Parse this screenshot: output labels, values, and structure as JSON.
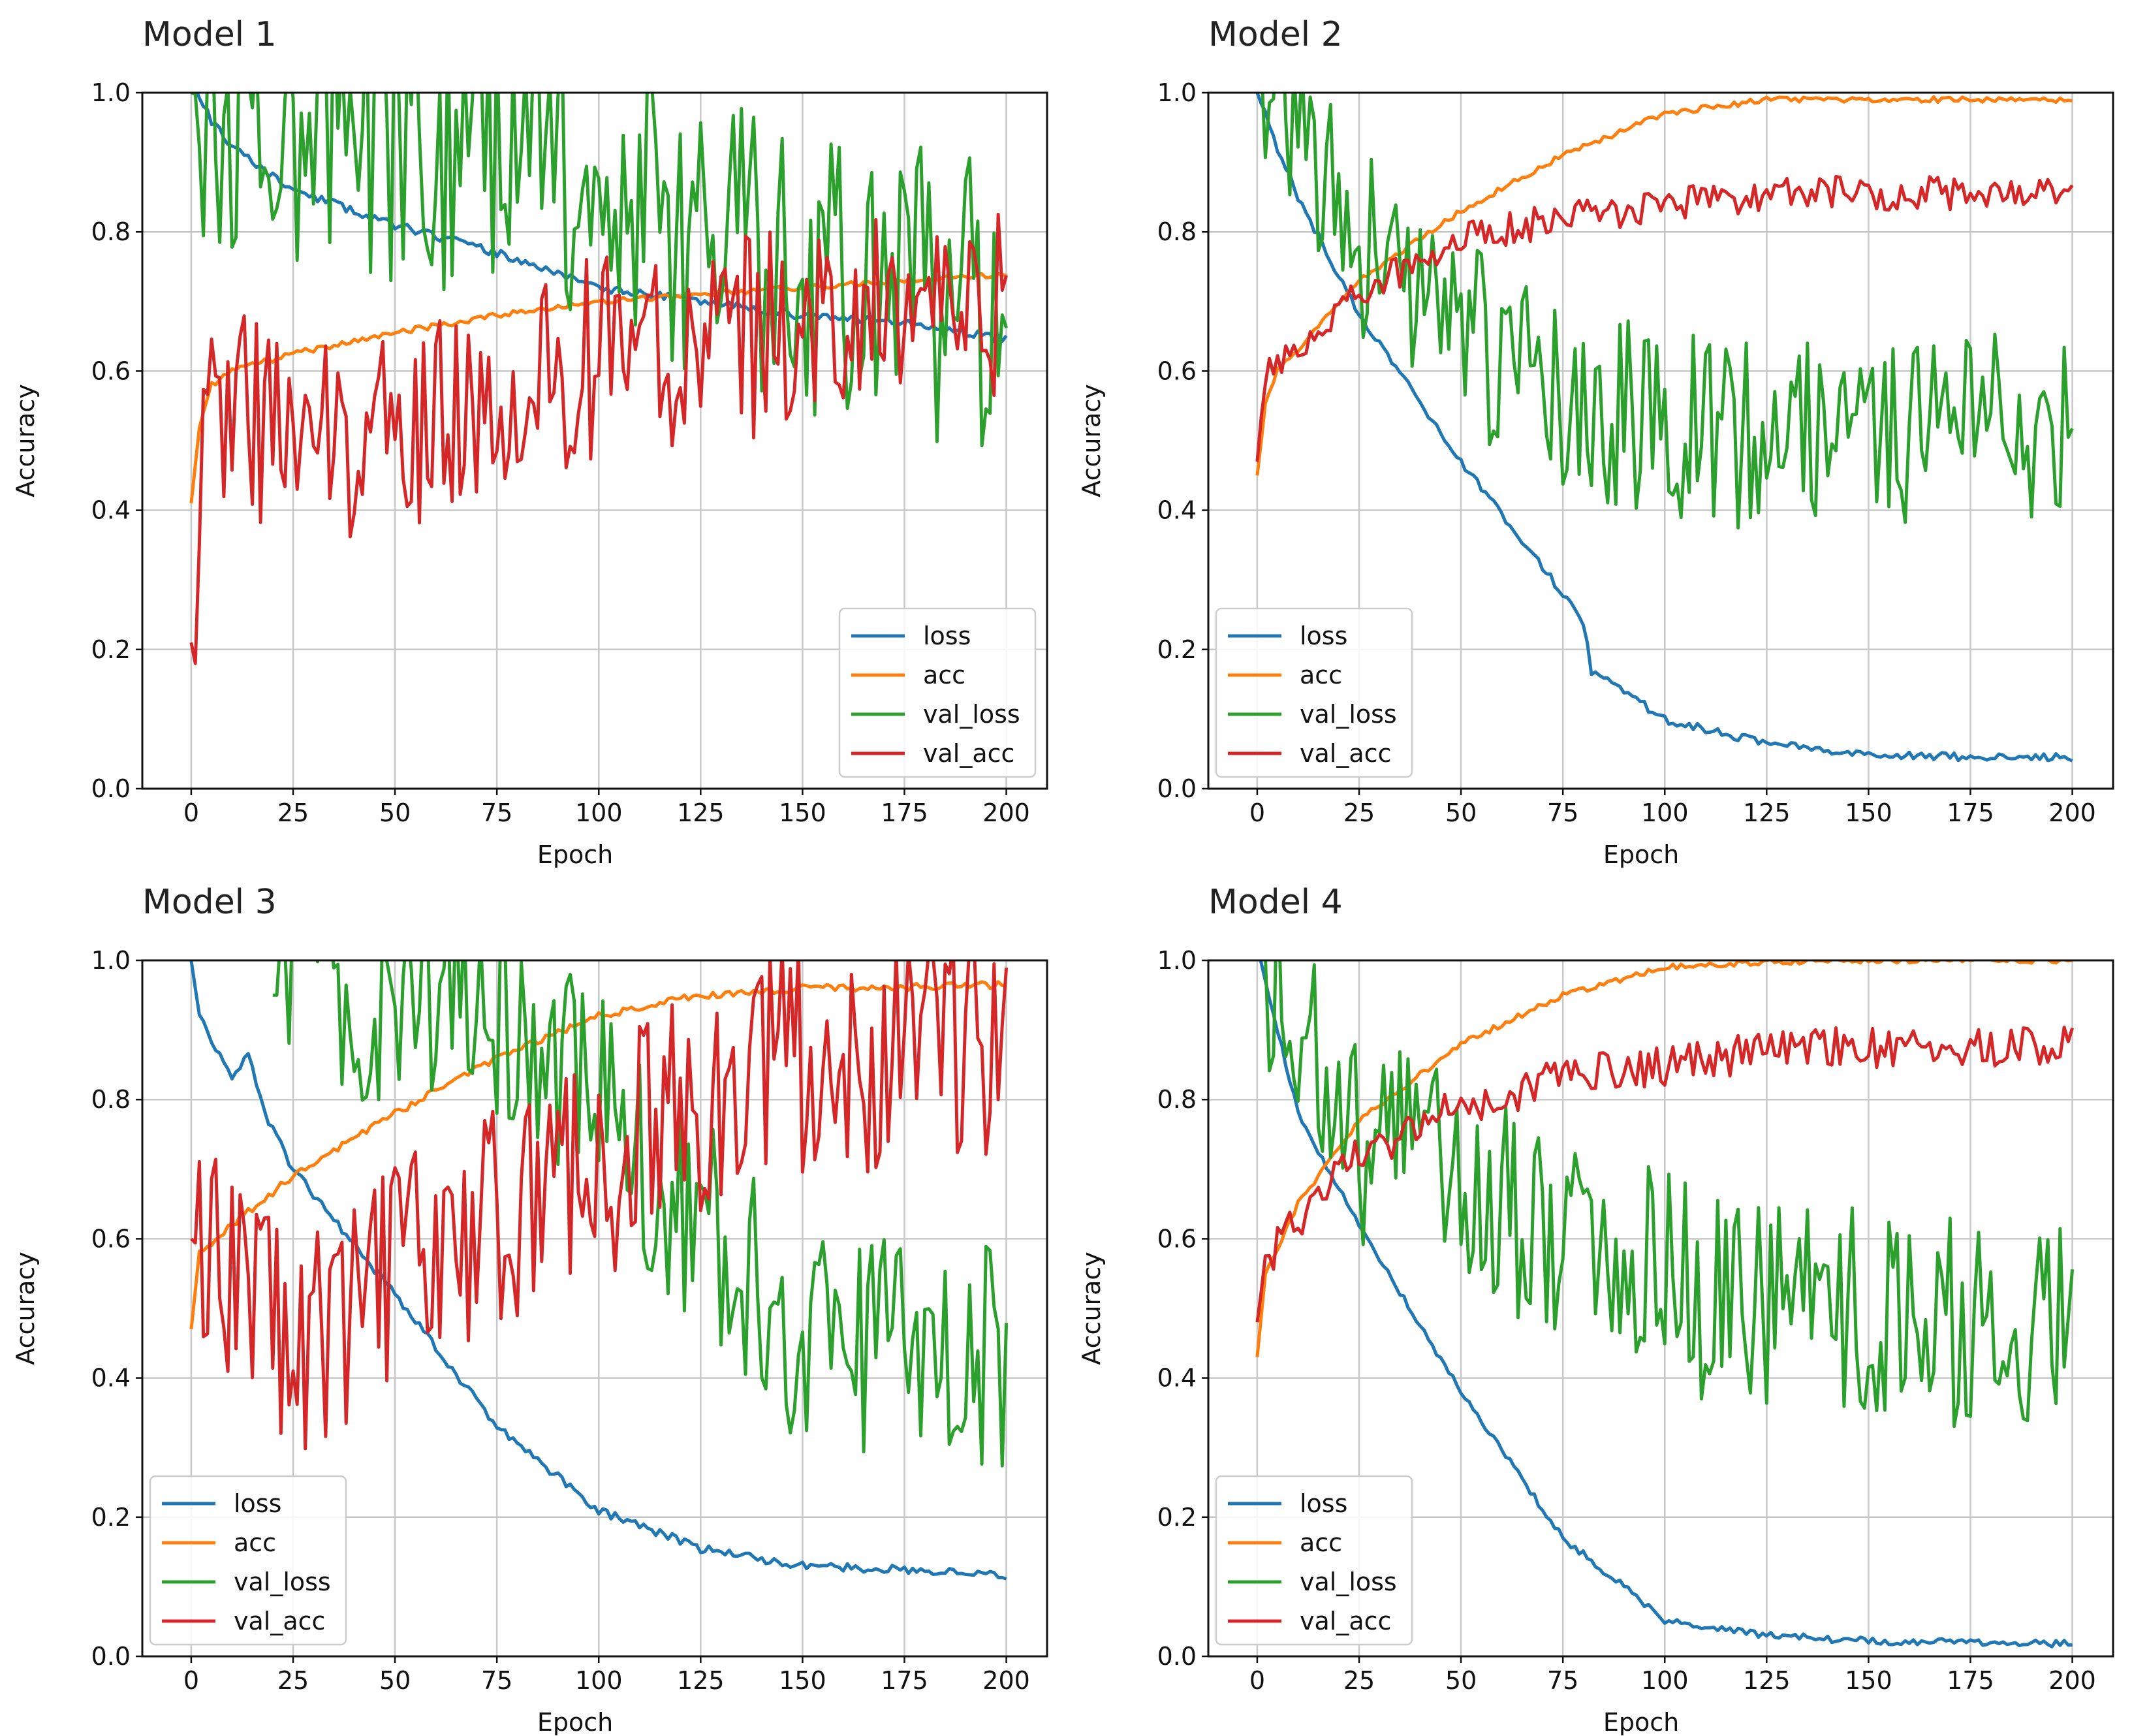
{
  "chart_data": [
    {
      "type": "line",
      "title": "Model 1",
      "xlabel": "Epoch",
      "ylabel": "Accuracy",
      "xlim": [
        -12,
        210
      ],
      "ylim": [
        0.0,
        1.0
      ],
      "xticks": [
        0,
        25,
        50,
        75,
        100,
        125,
        150,
        175,
        200
      ],
      "yticks": [
        0.0,
        0.2,
        0.4,
        0.6,
        0.8,
        1.0
      ],
      "grid": true,
      "legend_position": "lower-right",
      "series": [
        {
          "name": "loss",
          "color": "#1f77b4",
          "noise": 0.006,
          "seed": 11,
          "points": [
            [
              0,
              1.02
            ],
            [
              5,
              0.96
            ],
            [
              10,
              0.92
            ],
            [
              25,
              0.86
            ],
            [
              50,
              0.81
            ],
            [
              75,
              0.77
            ],
            [
              100,
              0.72
            ],
            [
              125,
              0.7
            ],
            [
              150,
              0.68
            ],
            [
              175,
              0.67
            ],
            [
              200,
              0.645
            ]
          ]
        },
        {
          "name": "acc",
          "color": "#ff7f0e",
          "noise": 0.004,
          "seed": 12,
          "points": [
            [
              0,
              0.41
            ],
            [
              2,
              0.52
            ],
            [
              5,
              0.58
            ],
            [
              10,
              0.6
            ],
            [
              25,
              0.625
            ],
            [
              50,
              0.655
            ],
            [
              75,
              0.68
            ],
            [
              100,
              0.7
            ],
            [
              125,
              0.71
            ],
            [
              150,
              0.72
            ],
            [
              175,
              0.73
            ],
            [
              200,
              0.74
            ]
          ]
        },
        {
          "name": "val_loss",
          "color": "#2ca02c",
          "noise": 0.22,
          "seed": 13,
          "points": [
            [
              0,
              1.0
            ],
            [
              25,
              0.95
            ],
            [
              50,
              0.95
            ],
            [
              75,
              0.92
            ],
            [
              100,
              0.88
            ],
            [
              125,
              0.8
            ],
            [
              150,
              0.76
            ],
            [
              175,
              0.72
            ],
            [
              200,
              0.7
            ]
          ]
        },
        {
          "name": "val_acc",
          "color": "#d62728",
          "noise": 0.15,
          "seed": 14,
          "points": [
            [
              0,
              0.21
            ],
            [
              1,
              0.18
            ],
            [
              3,
              0.58
            ],
            [
              25,
              0.5
            ],
            [
              50,
              0.52
            ],
            [
              75,
              0.55
            ],
            [
              100,
              0.62
            ],
            [
              125,
              0.64
            ],
            [
              150,
              0.66
            ],
            [
              175,
              0.68
            ],
            [
              200,
              0.7
            ]
          ]
        }
      ]
    },
    {
      "type": "line",
      "title": "Model 2",
      "xlabel": "Epoch",
      "ylabel": "Accuracy",
      "xlim": [
        -12,
        210
      ],
      "ylim": [
        0.0,
        1.0
      ],
      "xticks": [
        0,
        25,
        50,
        75,
        100,
        125,
        150,
        175,
        200
      ],
      "yticks": [
        0.0,
        0.2,
        0.4,
        0.6,
        0.8,
        1.0
      ],
      "grid": true,
      "legend_position": "lower-left",
      "series": [
        {
          "name": "loss",
          "color": "#1f77b4",
          "noise": 0.006,
          "seed": 21,
          "points": [
            [
              0,
              1.0
            ],
            [
              5,
              0.92
            ],
            [
              10,
              0.85
            ],
            [
              25,
              0.68
            ],
            [
              50,
              0.47
            ],
            [
              75,
              0.28
            ],
            [
              80,
              0.24
            ],
            [
              82,
              0.17
            ],
            [
              100,
              0.1
            ],
            [
              125,
              0.065
            ],
            [
              150,
              0.05
            ],
            [
              175,
              0.045
            ],
            [
              200,
              0.045
            ]
          ]
        },
        {
          "name": "acc",
          "color": "#ff7f0e",
          "noise": 0.004,
          "seed": 22,
          "points": [
            [
              0,
              0.45
            ],
            [
              2,
              0.55
            ],
            [
              5,
              0.6
            ],
            [
              10,
              0.63
            ],
            [
              25,
              0.73
            ],
            [
              50,
              0.83
            ],
            [
              75,
              0.91
            ],
            [
              100,
              0.97
            ],
            [
              125,
              0.99
            ],
            [
              150,
              0.99
            ],
            [
              175,
              0.99
            ],
            [
              200,
              0.99
            ]
          ]
        },
        {
          "name": "val_loss",
          "color": "#2ca02c",
          "noise": 0.14,
          "seed": 23,
          "points": [
            [
              0,
              1.05
            ],
            [
              10,
              0.95
            ],
            [
              25,
              0.78
            ],
            [
              50,
              0.65
            ],
            [
              75,
              0.57
            ],
            [
              100,
              0.52
            ],
            [
              125,
              0.51
            ],
            [
              150,
              0.52
            ],
            [
              175,
              0.52
            ],
            [
              200,
              0.51
            ]
          ]
        },
        {
          "name": "val_acc",
          "color": "#d62728",
          "noise": 0.025,
          "seed": 24,
          "points": [
            [
              0,
              0.47
            ],
            [
              2,
              0.6
            ],
            [
              10,
              0.62
            ],
            [
              25,
              0.71
            ],
            [
              50,
              0.79
            ],
            [
              75,
              0.82
            ],
            [
              100,
              0.84
            ],
            [
              125,
              0.855
            ],
            [
              150,
              0.855
            ],
            [
              175,
              0.855
            ],
            [
              200,
              0.855
            ]
          ]
        }
      ]
    },
    {
      "type": "line",
      "title": "Model 3",
      "xlabel": "Epoch",
      "ylabel": "Accuracy",
      "xlim": [
        -12,
        210
      ],
      "ylim": [
        0.0,
        1.0
      ],
      "xticks": [
        0,
        25,
        50,
        75,
        100,
        125,
        150,
        175,
        200
      ],
      "yticks": [
        0.0,
        0.2,
        0.4,
        0.6,
        0.8,
        1.0
      ],
      "grid": true,
      "legend_position": "lower-left",
      "series": [
        {
          "name": "loss",
          "color": "#1f77b4",
          "noise": 0.006,
          "seed": 31,
          "points": [
            [
              0,
              1.0
            ],
            [
              2,
              0.92
            ],
            [
              10,
              0.83
            ],
            [
              14,
              0.87
            ],
            [
              18,
              0.78
            ],
            [
              25,
              0.7
            ],
            [
              50,
              0.52
            ],
            [
              75,
              0.33
            ],
            [
              100,
              0.21
            ],
            [
              125,
              0.155
            ],
            [
              150,
              0.13
            ],
            [
              175,
              0.125
            ],
            [
              200,
              0.115
            ]
          ]
        },
        {
          "name": "acc",
          "color": "#ff7f0e",
          "noise": 0.005,
          "seed": 32,
          "points": [
            [
              0,
              0.47
            ],
            [
              2,
              0.58
            ],
            [
              10,
              0.62
            ],
            [
              25,
              0.69
            ],
            [
              50,
              0.78
            ],
            [
              75,
              0.86
            ],
            [
              100,
              0.92
            ],
            [
              125,
              0.95
            ],
            [
              150,
              0.96
            ],
            [
              175,
              0.962
            ],
            [
              200,
              0.965
            ]
          ]
        },
        {
          "name": "val_loss",
          "color": "#2ca02c",
          "noise": 0.16,
          "seed": 33,
          "points": [
            [
              20,
              0.95
            ],
            [
              50,
              0.95
            ],
            [
              75,
              0.92
            ],
            [
              100,
              0.8
            ],
            [
              125,
              0.62
            ],
            [
              150,
              0.45
            ],
            [
              175,
              0.44
            ],
            [
              200,
              0.43
            ]
          ]
        },
        {
          "name": "val_acc",
          "color": "#d62728",
          "noise": 0.17,
          "seed": 34,
          "points": [
            [
              0,
              0.6
            ],
            [
              25,
              0.45
            ],
            [
              50,
              0.55
            ],
            [
              75,
              0.62
            ],
            [
              100,
              0.7
            ],
            [
              125,
              0.8
            ],
            [
              150,
              0.86
            ],
            [
              175,
              0.865
            ],
            [
              200,
              0.87
            ]
          ]
        }
      ]
    },
    {
      "type": "line",
      "title": "Model 4",
      "xlabel": "Epoch",
      "ylabel": "Accuracy",
      "xlim": [
        -12,
        210
      ],
      "ylim": [
        0.0,
        1.0
      ],
      "xticks": [
        0,
        25,
        50,
        75,
        100,
        125,
        150,
        175,
        200
      ],
      "yticks": [
        0.0,
        0.2,
        0.4,
        0.6,
        0.8,
        1.0
      ],
      "grid": true,
      "legend_position": "lower-left",
      "series": [
        {
          "name": "loss",
          "color": "#1f77b4",
          "noise": 0.005,
          "seed": 41,
          "points": [
            [
              0,
              1.02
            ],
            [
              5,
              0.9
            ],
            [
              10,
              0.78
            ],
            [
              25,
              0.62
            ],
            [
              50,
              0.38
            ],
            [
              75,
              0.17
            ],
            [
              90,
              0.1
            ],
            [
              100,
              0.05
            ],
            [
              125,
              0.03
            ],
            [
              150,
              0.022
            ],
            [
              175,
              0.02
            ],
            [
              200,
              0.018
            ]
          ]
        },
        {
          "name": "acc",
          "color": "#ff7f0e",
          "noise": 0.004,
          "seed": 42,
          "points": [
            [
              0,
              0.43
            ],
            [
              2,
              0.55
            ],
            [
              10,
              0.65
            ],
            [
              25,
              0.77
            ],
            [
              50,
              0.88
            ],
            [
              75,
              0.95
            ],
            [
              100,
              0.99
            ],
            [
              125,
              0.998
            ],
            [
              150,
              1.0
            ],
            [
              175,
              1.0
            ],
            [
              200,
              1.0
            ]
          ]
        },
        {
          "name": "val_loss",
          "color": "#2ca02c",
          "noise": 0.16,
          "seed": 43,
          "points": [
            [
              0,
              1.02
            ],
            [
              10,
              0.92
            ],
            [
              25,
              0.75
            ],
            [
              50,
              0.68
            ],
            [
              75,
              0.62
            ],
            [
              100,
              0.58
            ],
            [
              110,
              0.5
            ],
            [
              125,
              0.49
            ],
            [
              150,
              0.49
            ],
            [
              175,
              0.48
            ],
            [
              200,
              0.475
            ]
          ]
        },
        {
          "name": "val_acc",
          "color": "#d62728",
          "noise": 0.03,
          "seed": 44,
          "points": [
            [
              0,
              0.48
            ],
            [
              2,
              0.57
            ],
            [
              10,
              0.63
            ],
            [
              25,
              0.72
            ],
            [
              50,
              0.79
            ],
            [
              75,
              0.83
            ],
            [
              100,
              0.85
            ],
            [
              125,
              0.87
            ],
            [
              150,
              0.875
            ],
            [
              175,
              0.875
            ],
            [
              200,
              0.875
            ]
          ]
        }
      ]
    }
  ]
}
